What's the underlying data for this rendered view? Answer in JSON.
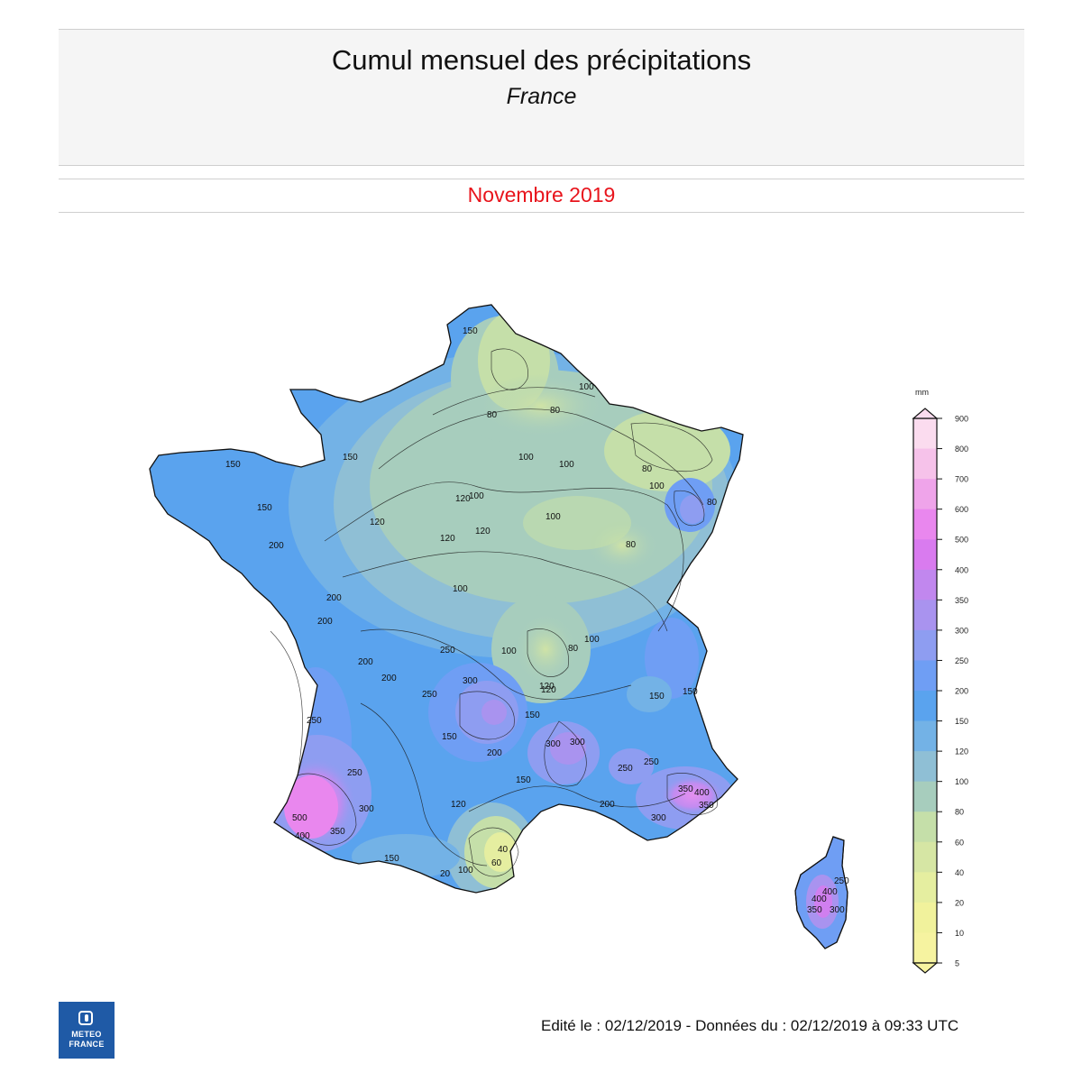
{
  "header": {
    "title": "Cumul mensuel des précipitations",
    "subtitle": "France"
  },
  "period": "Novembre 2019",
  "legend": {
    "unit": "mm",
    "levels": [
      "900",
      "800",
      "700",
      "600",
      "500",
      "400",
      "350",
      "300",
      "250",
      "200",
      "150",
      "120",
      "100",
      "80",
      "60",
      "40",
      "20",
      "10",
      "5"
    ],
    "colors": [
      "#fbdcef",
      "#f6c2ea",
      "#efa4ea",
      "#e987ee",
      "#d97bef",
      "#c187ee",
      "#a993ef",
      "#8e9df1",
      "#6f9ef4",
      "#5aa3ee",
      "#73b2e6",
      "#8fbfd5",
      "#a7cdbd",
      "#c5dfa9",
      "#d6e6a4",
      "#e5eea0",
      "#f1f29c",
      "#f6f3a0"
    ]
  },
  "contour_labels": [
    "150",
    "80",
    "80",
    "100",
    "100",
    "100",
    "150",
    "150",
    "150",
    "120",
    "120",
    "120",
    "120",
    "100",
    "100",
    "100",
    "80",
    "200",
    "200",
    "200",
    "200",
    "200",
    "250",
    "250",
    "250",
    "300",
    "300",
    "300",
    "250",
    "300",
    "400",
    "350",
    "500",
    "400",
    "350",
    "200",
    "150",
    "150",
    "150",
    "120",
    "120",
    "100",
    "100",
    "80",
    "60",
    "40",
    "20",
    "100",
    "150",
    "200",
    "250",
    "300",
    "350",
    "400",
    "300",
    "250",
    "120",
    "150",
    "100",
    "80",
    "80",
    "150",
    "400",
    "250",
    "350"
  ],
  "footer": {
    "text": "Edité le : 02/12/2019 - Données du : 02/12/2019 à 09:33 UTC"
  },
  "logo": {
    "line1": "METEO",
    "line2": "FRANCE"
  }
}
